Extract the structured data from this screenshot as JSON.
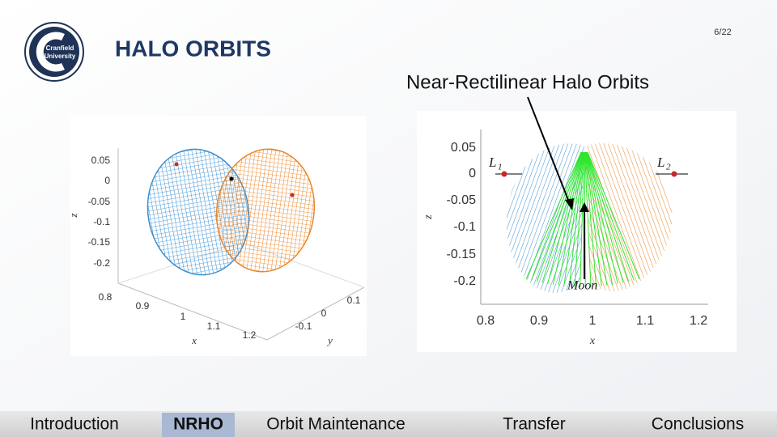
{
  "header": {
    "logo_text": [
      "Cranfield",
      "University"
    ],
    "title": "HALO ORBITS",
    "page": "6/22"
  },
  "subtitle": "Near-Rectilinear Halo Orbits",
  "figures": {
    "left": {
      "z_ticks": [
        "0.05",
        "0",
        "-0.05",
        "-0.1",
        "-0.15",
        "-0.2"
      ],
      "x_ticks": [
        "0.8",
        "0.9",
        "1",
        "1.1",
        "1.2"
      ],
      "y_ticks": [
        "0.1",
        "0",
        "-0.1"
      ],
      "z_label": "z",
      "x_label": "x",
      "y_label": "y"
    },
    "right": {
      "y_ticks": [
        "0.05",
        "0",
        "-0.05",
        "-0.1",
        "-0.15",
        "-0.2"
      ],
      "x_ticks": [
        "0.8",
        "0.9",
        "1",
        "1.1",
        "1.2"
      ],
      "y_label": "z",
      "x_label": "x",
      "l1": "L",
      "l1_sub": "1",
      "l2": "L",
      "l2_sub": "2",
      "moon": "Moon"
    }
  },
  "nav": {
    "items": [
      "Introduction",
      "NRHO",
      "Orbit Maintenance",
      "Transfer",
      "Conclusions"
    ],
    "active": 1
  }
}
